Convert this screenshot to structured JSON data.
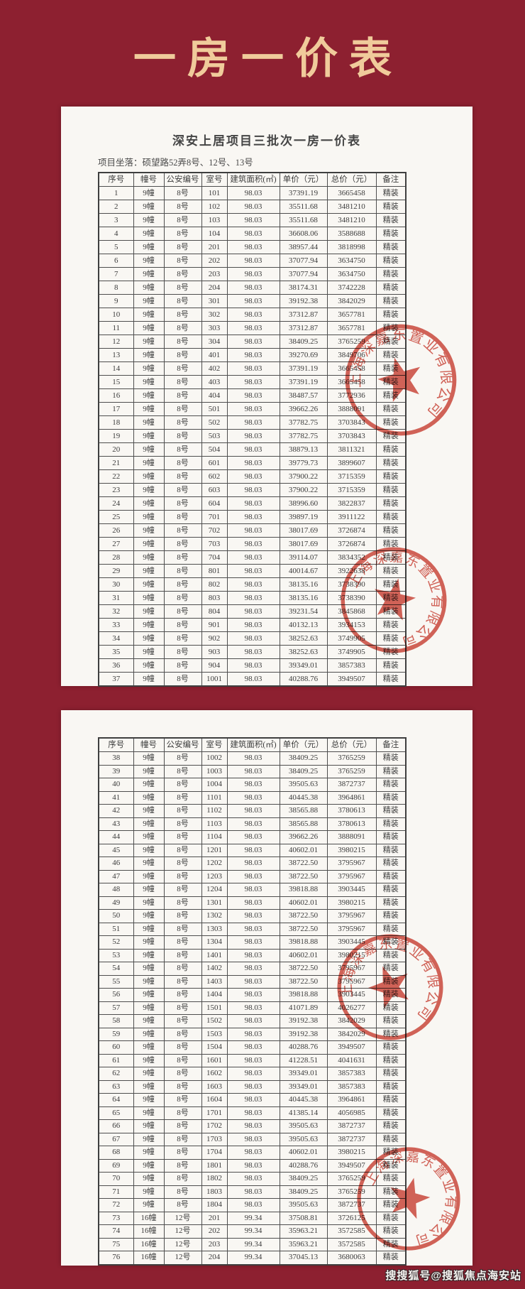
{
  "page": {
    "title": "一房一价表",
    "watermark": "搜搜狐号@搜狐焦点海安站"
  },
  "colors": {
    "background": "#8d2030",
    "title_gold": "#f0cb9b",
    "seal_red": "#c9392c",
    "panel_white": "#f9f7f3"
  },
  "seal": {
    "text": "上海深嘉东置业有限公司"
  },
  "panel1": {
    "doc_title": "深安上居项目三批次一房一价表",
    "location": "项目坐落：硕望路52弄8号、12号、13号",
    "table": {
      "columns": [
        "序号",
        "幢号",
        "公安编号",
        "室号",
        "建筑面积(㎡)",
        "单价（元）",
        "总价（元）",
        "备注"
      ],
      "rows": [
        [
          "1",
          "9幢",
          "8号",
          "101",
          "98.03",
          "37391.19",
          "3665458",
          "精装"
        ],
        [
          "2",
          "9幢",
          "8号",
          "102",
          "98.03",
          "35511.68",
          "3481210",
          "精装"
        ],
        [
          "3",
          "9幢",
          "8号",
          "103",
          "98.03",
          "35511.68",
          "3481210",
          "精装"
        ],
        [
          "4",
          "9幢",
          "8号",
          "104",
          "98.03",
          "36608.06",
          "3588688",
          "精装"
        ],
        [
          "5",
          "9幢",
          "8号",
          "201",
          "98.03",
          "38957.44",
          "3818998",
          "精装"
        ],
        [
          "6",
          "9幢",
          "8号",
          "202",
          "98.03",
          "37077.94",
          "3634750",
          "精装"
        ],
        [
          "7",
          "9幢",
          "8号",
          "203",
          "98.03",
          "37077.94",
          "3634750",
          "精装"
        ],
        [
          "8",
          "9幢",
          "8号",
          "204",
          "98.03",
          "38174.31",
          "3742228",
          "精装"
        ],
        [
          "9",
          "9幢",
          "8号",
          "301",
          "98.03",
          "39192.38",
          "3842029",
          "精装"
        ],
        [
          "10",
          "9幢",
          "8号",
          "302",
          "98.03",
          "37312.87",
          "3657781",
          "精装"
        ],
        [
          "11",
          "9幢",
          "8号",
          "303",
          "98.03",
          "37312.87",
          "3657781",
          "精装"
        ],
        [
          "12",
          "9幢",
          "8号",
          "304",
          "98.03",
          "38409.25",
          "3765259",
          "精装"
        ],
        [
          "13",
          "9幢",
          "8号",
          "401",
          "98.03",
          "39270.69",
          "3849706",
          "精装"
        ],
        [
          "14",
          "9幢",
          "8号",
          "402",
          "98.03",
          "37391.19",
          "3665458",
          "精装"
        ],
        [
          "15",
          "9幢",
          "8号",
          "403",
          "98.03",
          "37391.19",
          "3665458",
          "精装"
        ],
        [
          "16",
          "9幢",
          "8号",
          "404",
          "98.03",
          "38487.57",
          "3772936",
          "精装"
        ],
        [
          "17",
          "9幢",
          "8号",
          "501",
          "98.03",
          "39662.26",
          "3888091",
          "精装"
        ],
        [
          "18",
          "9幢",
          "8号",
          "502",
          "98.03",
          "37782.75",
          "3703843",
          "精装"
        ],
        [
          "19",
          "9幢",
          "8号",
          "503",
          "98.03",
          "37782.75",
          "3703843",
          "精装"
        ],
        [
          "20",
          "9幢",
          "8号",
          "504",
          "98.03",
          "38879.13",
          "3811321",
          "精装"
        ],
        [
          "21",
          "9幢",
          "8号",
          "601",
          "98.03",
          "39779.73",
          "3899607",
          "精装"
        ],
        [
          "22",
          "9幢",
          "8号",
          "602",
          "98.03",
          "37900.22",
          "3715359",
          "精装"
        ],
        [
          "23",
          "9幢",
          "8号",
          "603",
          "98.03",
          "37900.22",
          "3715359",
          "精装"
        ],
        [
          "24",
          "9幢",
          "8号",
          "604",
          "98.03",
          "38996.60",
          "3822837",
          "精装"
        ],
        [
          "25",
          "9幢",
          "8号",
          "701",
          "98.03",
          "39897.19",
          "3911122",
          "精装"
        ],
        [
          "26",
          "9幢",
          "8号",
          "702",
          "98.03",
          "38017.69",
          "3726874",
          "精装"
        ],
        [
          "27",
          "9幢",
          "8号",
          "703",
          "98.03",
          "38017.69",
          "3726874",
          "精装"
        ],
        [
          "28",
          "9幢",
          "8号",
          "704",
          "98.03",
          "39114.07",
          "3834352",
          "精装"
        ],
        [
          "29",
          "9幢",
          "8号",
          "801",
          "98.03",
          "40014.67",
          "3922638",
          "精装"
        ],
        [
          "30",
          "9幢",
          "8号",
          "802",
          "98.03",
          "38135.16",
          "3738390",
          "精装"
        ],
        [
          "31",
          "9幢",
          "8号",
          "803",
          "98.03",
          "38135.16",
          "3738390",
          "精装"
        ],
        [
          "32",
          "9幢",
          "8号",
          "804",
          "98.03",
          "39231.54",
          "3845868",
          "精装"
        ],
        [
          "33",
          "9幢",
          "8号",
          "901",
          "98.03",
          "40132.13",
          "3934153",
          "精装"
        ],
        [
          "34",
          "9幢",
          "8号",
          "902",
          "98.03",
          "38252.63",
          "3749905",
          "精装"
        ],
        [
          "35",
          "9幢",
          "8号",
          "903",
          "98.03",
          "38252.63",
          "3749905",
          "精装"
        ],
        [
          "36",
          "9幢",
          "8号",
          "904",
          "98.03",
          "39349.01",
          "3857383",
          "精装"
        ],
        [
          "37",
          "9幢",
          "8号",
          "1001",
          "98.03",
          "40288.76",
          "3949507",
          "精装"
        ]
      ]
    }
  },
  "panel2": {
    "table": {
      "columns": [
        "序号",
        "幢号",
        "公安编号",
        "室号",
        "建筑面积(㎡)",
        "单价（元）",
        "总价（元）",
        "备注"
      ],
      "rows": [
        [
          "38",
          "9幢",
          "8号",
          "1002",
          "98.03",
          "38409.25",
          "3765259",
          "精装"
        ],
        [
          "39",
          "9幢",
          "8号",
          "1003",
          "98.03",
          "38409.25",
          "3765259",
          "精装"
        ],
        [
          "40",
          "9幢",
          "8号",
          "1004",
          "98.03",
          "39505.63",
          "3872737",
          "精装"
        ],
        [
          "41",
          "9幢",
          "8号",
          "1101",
          "98.03",
          "40445.38",
          "3964861",
          "精装"
        ],
        [
          "42",
          "9幢",
          "8号",
          "1102",
          "98.03",
          "38565.88",
          "3780613",
          "精装"
        ],
        [
          "43",
          "9幢",
          "8号",
          "1103",
          "98.03",
          "38565.88",
          "3780613",
          "精装"
        ],
        [
          "44",
          "9幢",
          "8号",
          "1104",
          "98.03",
          "39662.26",
          "3888091",
          "精装"
        ],
        [
          "45",
          "9幢",
          "8号",
          "1201",
          "98.03",
          "40602.01",
          "3980215",
          "精装"
        ],
        [
          "46",
          "9幢",
          "8号",
          "1202",
          "98.03",
          "38722.50",
          "3795967",
          "精装"
        ],
        [
          "47",
          "9幢",
          "8号",
          "1203",
          "98.03",
          "38722.50",
          "3795967",
          "精装"
        ],
        [
          "48",
          "9幢",
          "8号",
          "1204",
          "98.03",
          "39818.88",
          "3903445",
          "精装"
        ],
        [
          "49",
          "9幢",
          "8号",
          "1301",
          "98.03",
          "40602.01",
          "3980215",
          "精装"
        ],
        [
          "50",
          "9幢",
          "8号",
          "1302",
          "98.03",
          "38722.50",
          "3795967",
          "精装"
        ],
        [
          "51",
          "9幢",
          "8号",
          "1303",
          "98.03",
          "38722.50",
          "3795967",
          "精装"
        ],
        [
          "52",
          "9幢",
          "8号",
          "1304",
          "98.03",
          "39818.88",
          "3903445",
          "精装"
        ],
        [
          "53",
          "9幢",
          "8号",
          "1401",
          "98.03",
          "40602.01",
          "3980215",
          "精装"
        ],
        [
          "54",
          "9幢",
          "8号",
          "1402",
          "98.03",
          "38722.50",
          "3795967",
          "精装"
        ],
        [
          "55",
          "9幢",
          "8号",
          "1403",
          "98.03",
          "38722.50",
          "3795967",
          "精装"
        ],
        [
          "56",
          "9幢",
          "8号",
          "1404",
          "98.03",
          "39818.88",
          "3903445",
          "精装"
        ],
        [
          "57",
          "9幢",
          "8号",
          "1501",
          "98.03",
          "41071.89",
          "4026277",
          "精装"
        ],
        [
          "58",
          "9幢",
          "8号",
          "1502",
          "98.03",
          "39192.38",
          "3842029",
          "精装"
        ],
        [
          "59",
          "9幢",
          "8号",
          "1503",
          "98.03",
          "39192.38",
          "3842029",
          "精装"
        ],
        [
          "60",
          "9幢",
          "8号",
          "1504",
          "98.03",
          "40288.76",
          "3949507",
          "精装"
        ],
        [
          "61",
          "9幢",
          "8号",
          "1601",
          "98.03",
          "41228.51",
          "4041631",
          "精装"
        ],
        [
          "62",
          "9幢",
          "8号",
          "1602",
          "98.03",
          "39349.01",
          "3857383",
          "精装"
        ],
        [
          "63",
          "9幢",
          "8号",
          "1603",
          "98.03",
          "39349.01",
          "3857383",
          "精装"
        ],
        [
          "64",
          "9幢",
          "8号",
          "1604",
          "98.03",
          "40445.38",
          "3964861",
          "精装"
        ],
        [
          "65",
          "9幢",
          "8号",
          "1701",
          "98.03",
          "41385.14",
          "4056985",
          "精装"
        ],
        [
          "66",
          "9幢",
          "8号",
          "1702",
          "98.03",
          "39505.63",
          "3872737",
          "精装"
        ],
        [
          "67",
          "9幢",
          "8号",
          "1703",
          "98.03",
          "39505.63",
          "3872737",
          "精装"
        ],
        [
          "68",
          "9幢",
          "8号",
          "1704",
          "98.03",
          "40602.01",
          "3980215",
          "精装"
        ],
        [
          "69",
          "9幢",
          "8号",
          "1801",
          "98.03",
          "40288.76",
          "3949507",
          "精装"
        ],
        [
          "70",
          "9幢",
          "8号",
          "1802",
          "98.03",
          "38409.25",
          "3765259",
          "精装"
        ],
        [
          "71",
          "9幢",
          "8号",
          "1803",
          "98.03",
          "38409.25",
          "3765259",
          "精装"
        ],
        [
          "72",
          "9幢",
          "8号",
          "1804",
          "98.03",
          "39505.63",
          "3872737",
          "精装"
        ],
        [
          "73",
          "16幢",
          "12号",
          "201",
          "99.34",
          "37508.81",
          "3726125",
          "精装"
        ],
        [
          "74",
          "16幢",
          "12号",
          "202",
          "99.34",
          "35963.21",
          "3572585",
          "精装"
        ],
        [
          "75",
          "16幢",
          "12号",
          "203",
          "99.34",
          "35963.21",
          "3572585",
          "精装"
        ],
        [
          "76",
          "16幢",
          "12号",
          "204",
          "99.34",
          "37045.13",
          "3680063",
          "精装"
        ]
      ]
    }
  }
}
